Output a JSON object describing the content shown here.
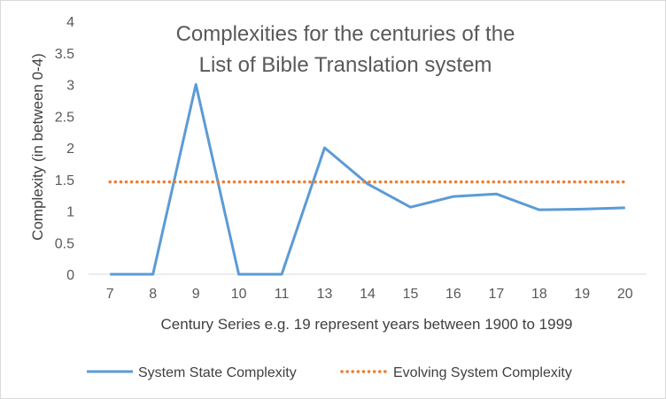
{
  "chart_data": {
    "type": "line",
    "title_lines": [
      "Complexities for the centuries of the",
      "List of Bible Translation system"
    ],
    "xlabel": "Century Series e.g. 19 represent years between 1900 to 1999",
    "ylabel": "Complexity (in between 0-4)",
    "categories": [
      "7",
      "8",
      "9",
      "10",
      "11",
      "13",
      "14",
      "15",
      "16",
      "17",
      "18",
      "19",
      "20"
    ],
    "ylim": [
      0,
      4
    ],
    "yticks": [
      "0",
      "0.5",
      "1",
      "1.5",
      "2",
      "2.5",
      "3",
      "3.5",
      "4"
    ],
    "grid": false,
    "legend_position": "bottom",
    "series": [
      {
        "name": "System State Complexity",
        "style": "solid",
        "color": "#5b9bd5",
        "values": [
          0,
          0,
          3,
          0,
          0,
          2,
          1.43,
          1.06,
          1.23,
          1.27,
          1.02,
          1.03,
          1.05
        ]
      },
      {
        "name": "Evolving System Complexity",
        "style": "dotted",
        "color": "#ed7d31",
        "values": [
          1.46,
          1.46,
          1.46,
          1.46,
          1.46,
          1.46,
          1.46,
          1.46,
          1.46,
          1.46,
          1.46,
          1.46,
          1.46
        ]
      }
    ]
  }
}
